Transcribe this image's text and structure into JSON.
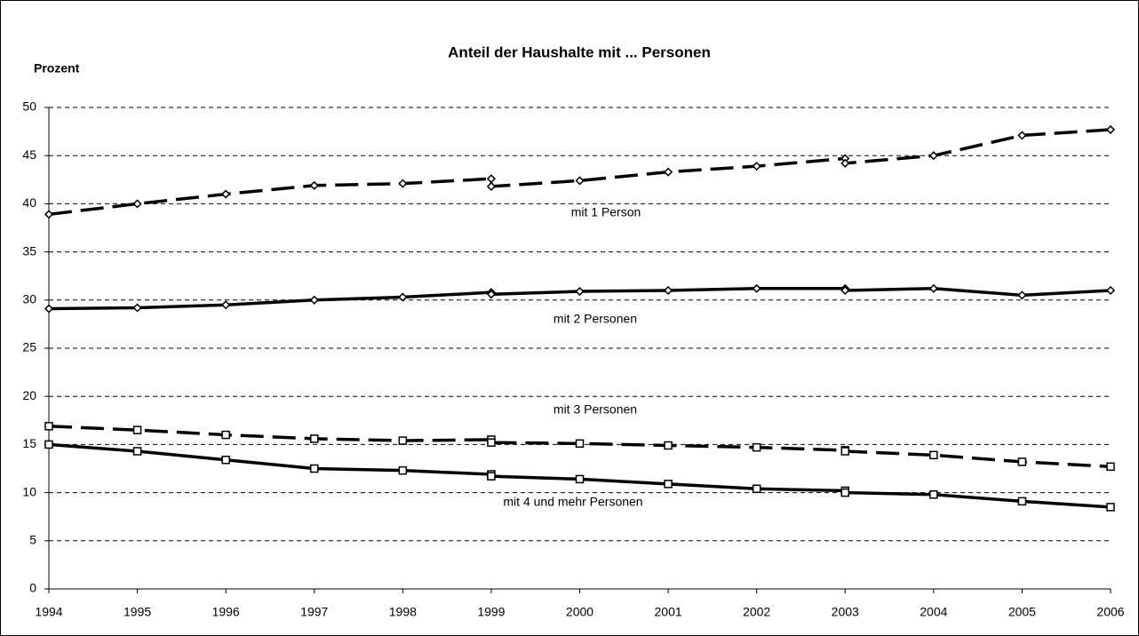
{
  "chart_data": {
    "type": "line",
    "title": "Anteil der Haushalte mit ... Personen",
    "y_label": "Prozent",
    "x": [
      1994,
      1995,
      1996,
      1997,
      1998,
      1999,
      1999,
      2000,
      2001,
      2002,
      2003,
      2003,
      2004,
      2005,
      2006
    ],
    "xlim": [
      1994,
      2006
    ],
    "xticks": [
      1994,
      1995,
      1996,
      1997,
      1998,
      1999,
      2000,
      2001,
      2002,
      2003,
      2004,
      2005,
      2006
    ],
    "ylim": [
      0,
      50
    ],
    "yticks": [
      0,
      5,
      10,
      15,
      20,
      25,
      30,
      35,
      40,
      45,
      50
    ],
    "grid": true,
    "series": [
      {
        "name": "mit 1 Person",
        "color": "#000000",
        "dashed": true,
        "marker": "diamond",
        "values": [
          38.9,
          40.0,
          41.0,
          41.9,
          42.1,
          42.6,
          41.8,
          42.4,
          43.3,
          43.9,
          44.7,
          44.2,
          45.0,
          47.1,
          47.7
        ]
      },
      {
        "name": "mit 2 Personen",
        "color": "#000000",
        "dashed": false,
        "marker": "diamond",
        "values": [
          29.1,
          29.2,
          29.5,
          30.0,
          30.3,
          30.8,
          30.6,
          30.9,
          31.0,
          31.2,
          31.2,
          31.0,
          31.2,
          30.5,
          31.0
        ]
      },
      {
        "name": "mit 3 Personen",
        "color": "#000000",
        "dashed": true,
        "marker": "square",
        "values": [
          16.9,
          16.5,
          16.0,
          15.6,
          15.4,
          15.5,
          15.2,
          15.1,
          14.9,
          14.7,
          14.4,
          14.3,
          13.9,
          13.2,
          12.7
        ]
      },
      {
        "name": "mit 4 und mehr Personen",
        "color": "#000000",
        "dashed": false,
        "marker": "square",
        "values": [
          15.0,
          14.3,
          13.4,
          12.5,
          12.3,
          11.9,
          11.7,
          11.4,
          10.9,
          10.4,
          10.2,
          10.0,
          9.8,
          9.1,
          8.5
        ]
      }
    ]
  }
}
